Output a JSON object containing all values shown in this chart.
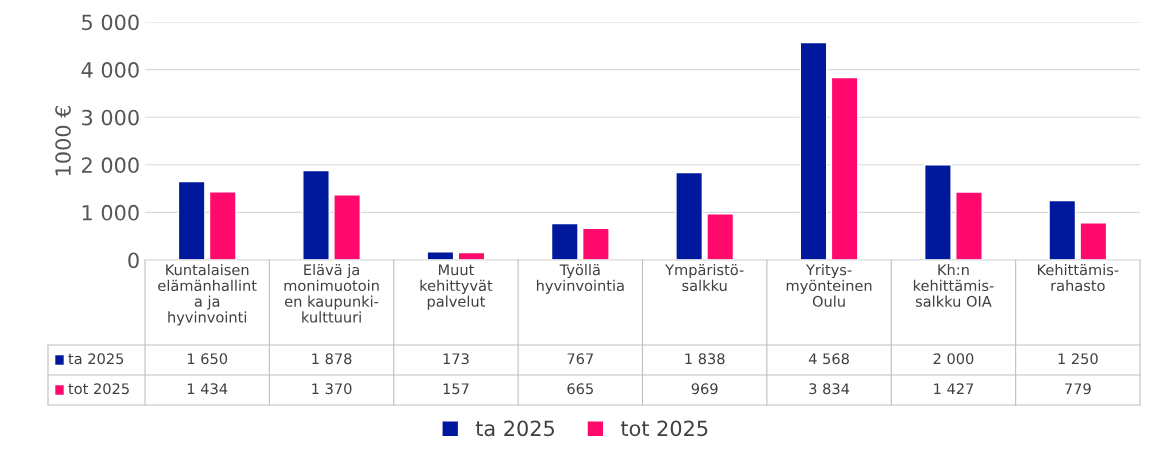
{
  "chart_data": {
    "type": "bar",
    "ylabel": "1000 €",
    "categories": [
      "Kuntalaisen\nelämänhallint\na ja\nhyvinvointi",
      "Elävä ja\nmonimuotoin\nen kaupunki-\nkulttuuri",
      "Muut\nkehittyvät\npalvelut",
      "Työllä\nhyvinvointia",
      "Ympäristö-\nsalkku",
      "Yritys-\nmyönteinen\nOulu",
      "Kh:n\nkehittämis-\nsalkku OIA",
      "Kehittämis-\nrahasto"
    ],
    "series": [
      {
        "name": "ta 2025",
        "color": "#00189c",
        "values": [
          1650,
          1878,
          173,
          767,
          1838,
          4568,
          2000,
          1250
        ]
      },
      {
        "name": "tot 2025",
        "color": "#ff0a6c",
        "values": [
          1434,
          1370,
          157,
          665,
          969,
          3834,
          1427,
          779
        ]
      }
    ],
    "ylim": [
      0,
      5000
    ],
    "yticks": [
      0,
      {
        "value": 1000,
        "label": "1 000"
      },
      {
        "value": 2000,
        "label": "2 000"
      },
      {
        "value": 3000,
        "label": "3 000"
      },
      {
        "value": 4000,
        "label": "4 000"
      },
      {
        "value": 5000,
        "label": "5 000"
      }
    ],
    "grid": "y",
    "legend": "bottom",
    "data_labels": true
  }
}
